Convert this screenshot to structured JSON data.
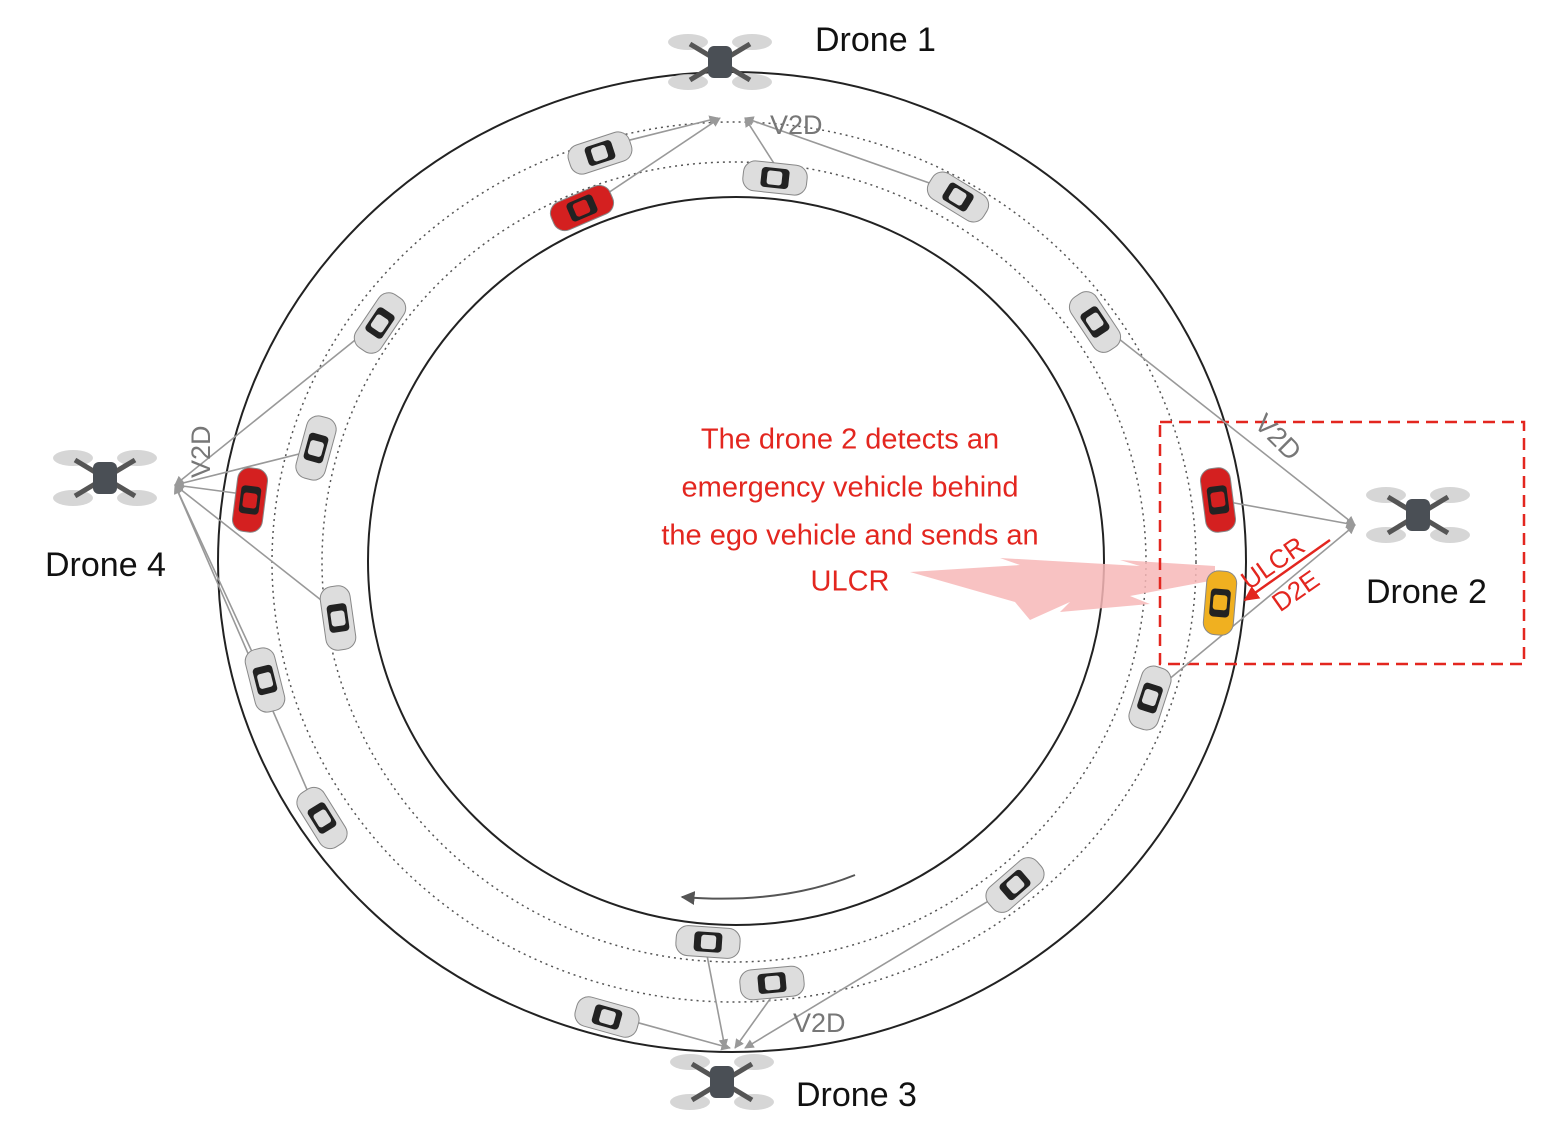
{
  "drones": [
    {
      "label": "Drone 1"
    },
    {
      "label": "Drone 2"
    },
    {
      "label": "Drone 3"
    },
    {
      "label": "Drone 4"
    }
  ],
  "link_labels": [
    "V2D",
    "V2D",
    "V2D",
    "V2D"
  ],
  "annotation": {
    "lines": [
      "The drone 2 detects an",
      "emergency vehicle behind",
      "the ego vehicle and sends an",
      "ULCR"
    ]
  },
  "request_labels": [
    "ULCR",
    "D2E"
  ]
}
